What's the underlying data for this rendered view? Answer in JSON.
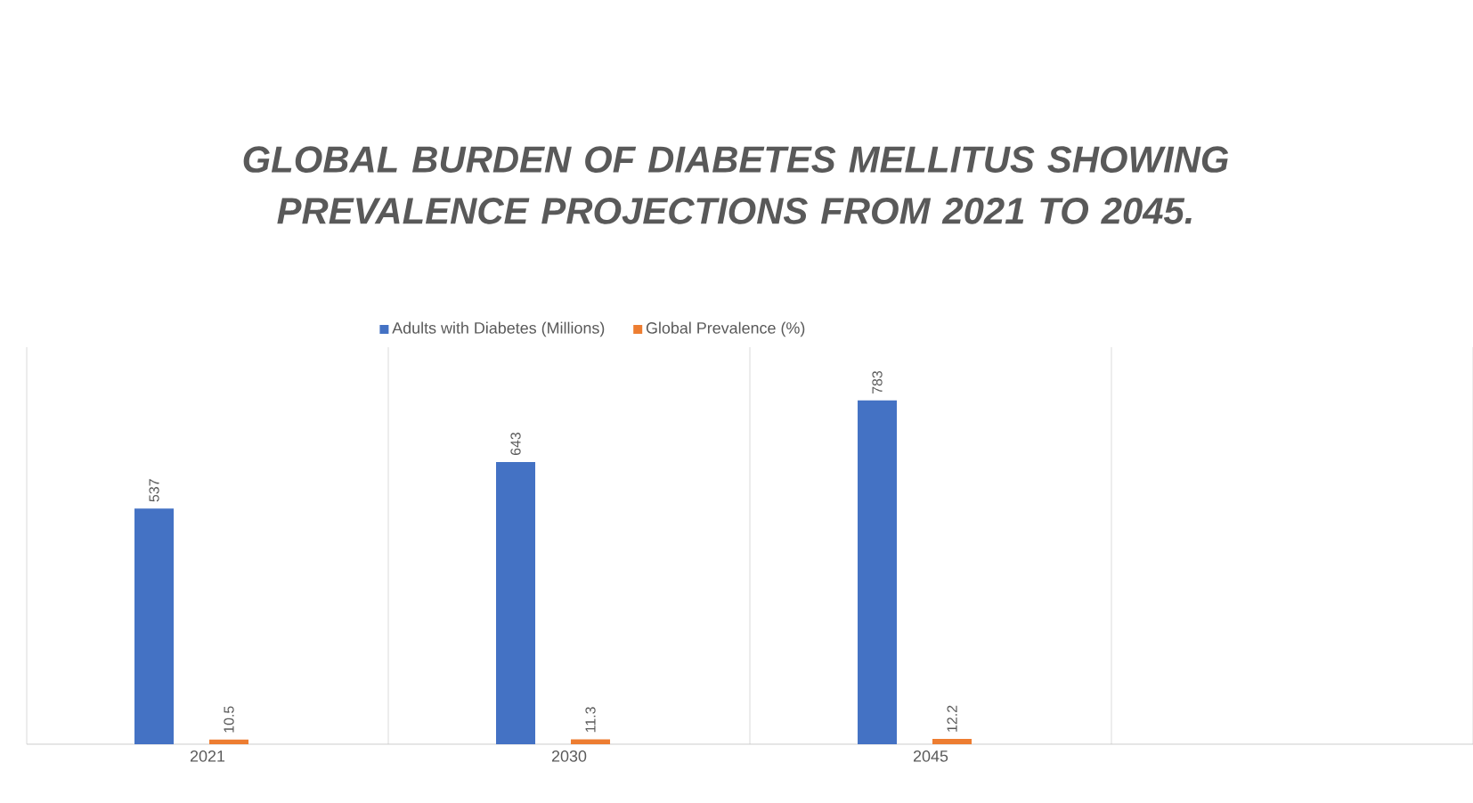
{
  "chart_data": {
    "type": "bar",
    "title": "GLOBAL BURDEN OF DIABETES MELLITUS SHOWING PREVALENCE PROJECTIONS FROM 2021 TO 2045.",
    "categories": [
      "2021",
      "2030",
      "2045",
      null
    ],
    "series": [
      {
        "name": "Adults with Diabetes (Millions)",
        "color": "#4472c4",
        "values": [
          537,
          643,
          783,
          null
        ]
      },
      {
        "name": "Global Prevalence (%)",
        "color": "#ed7d31",
        "values": [
          10.5,
          11.3,
          12.2,
          null
        ]
      }
    ],
    "data_labels": true,
    "legend": "top",
    "grid": "x"
  }
}
